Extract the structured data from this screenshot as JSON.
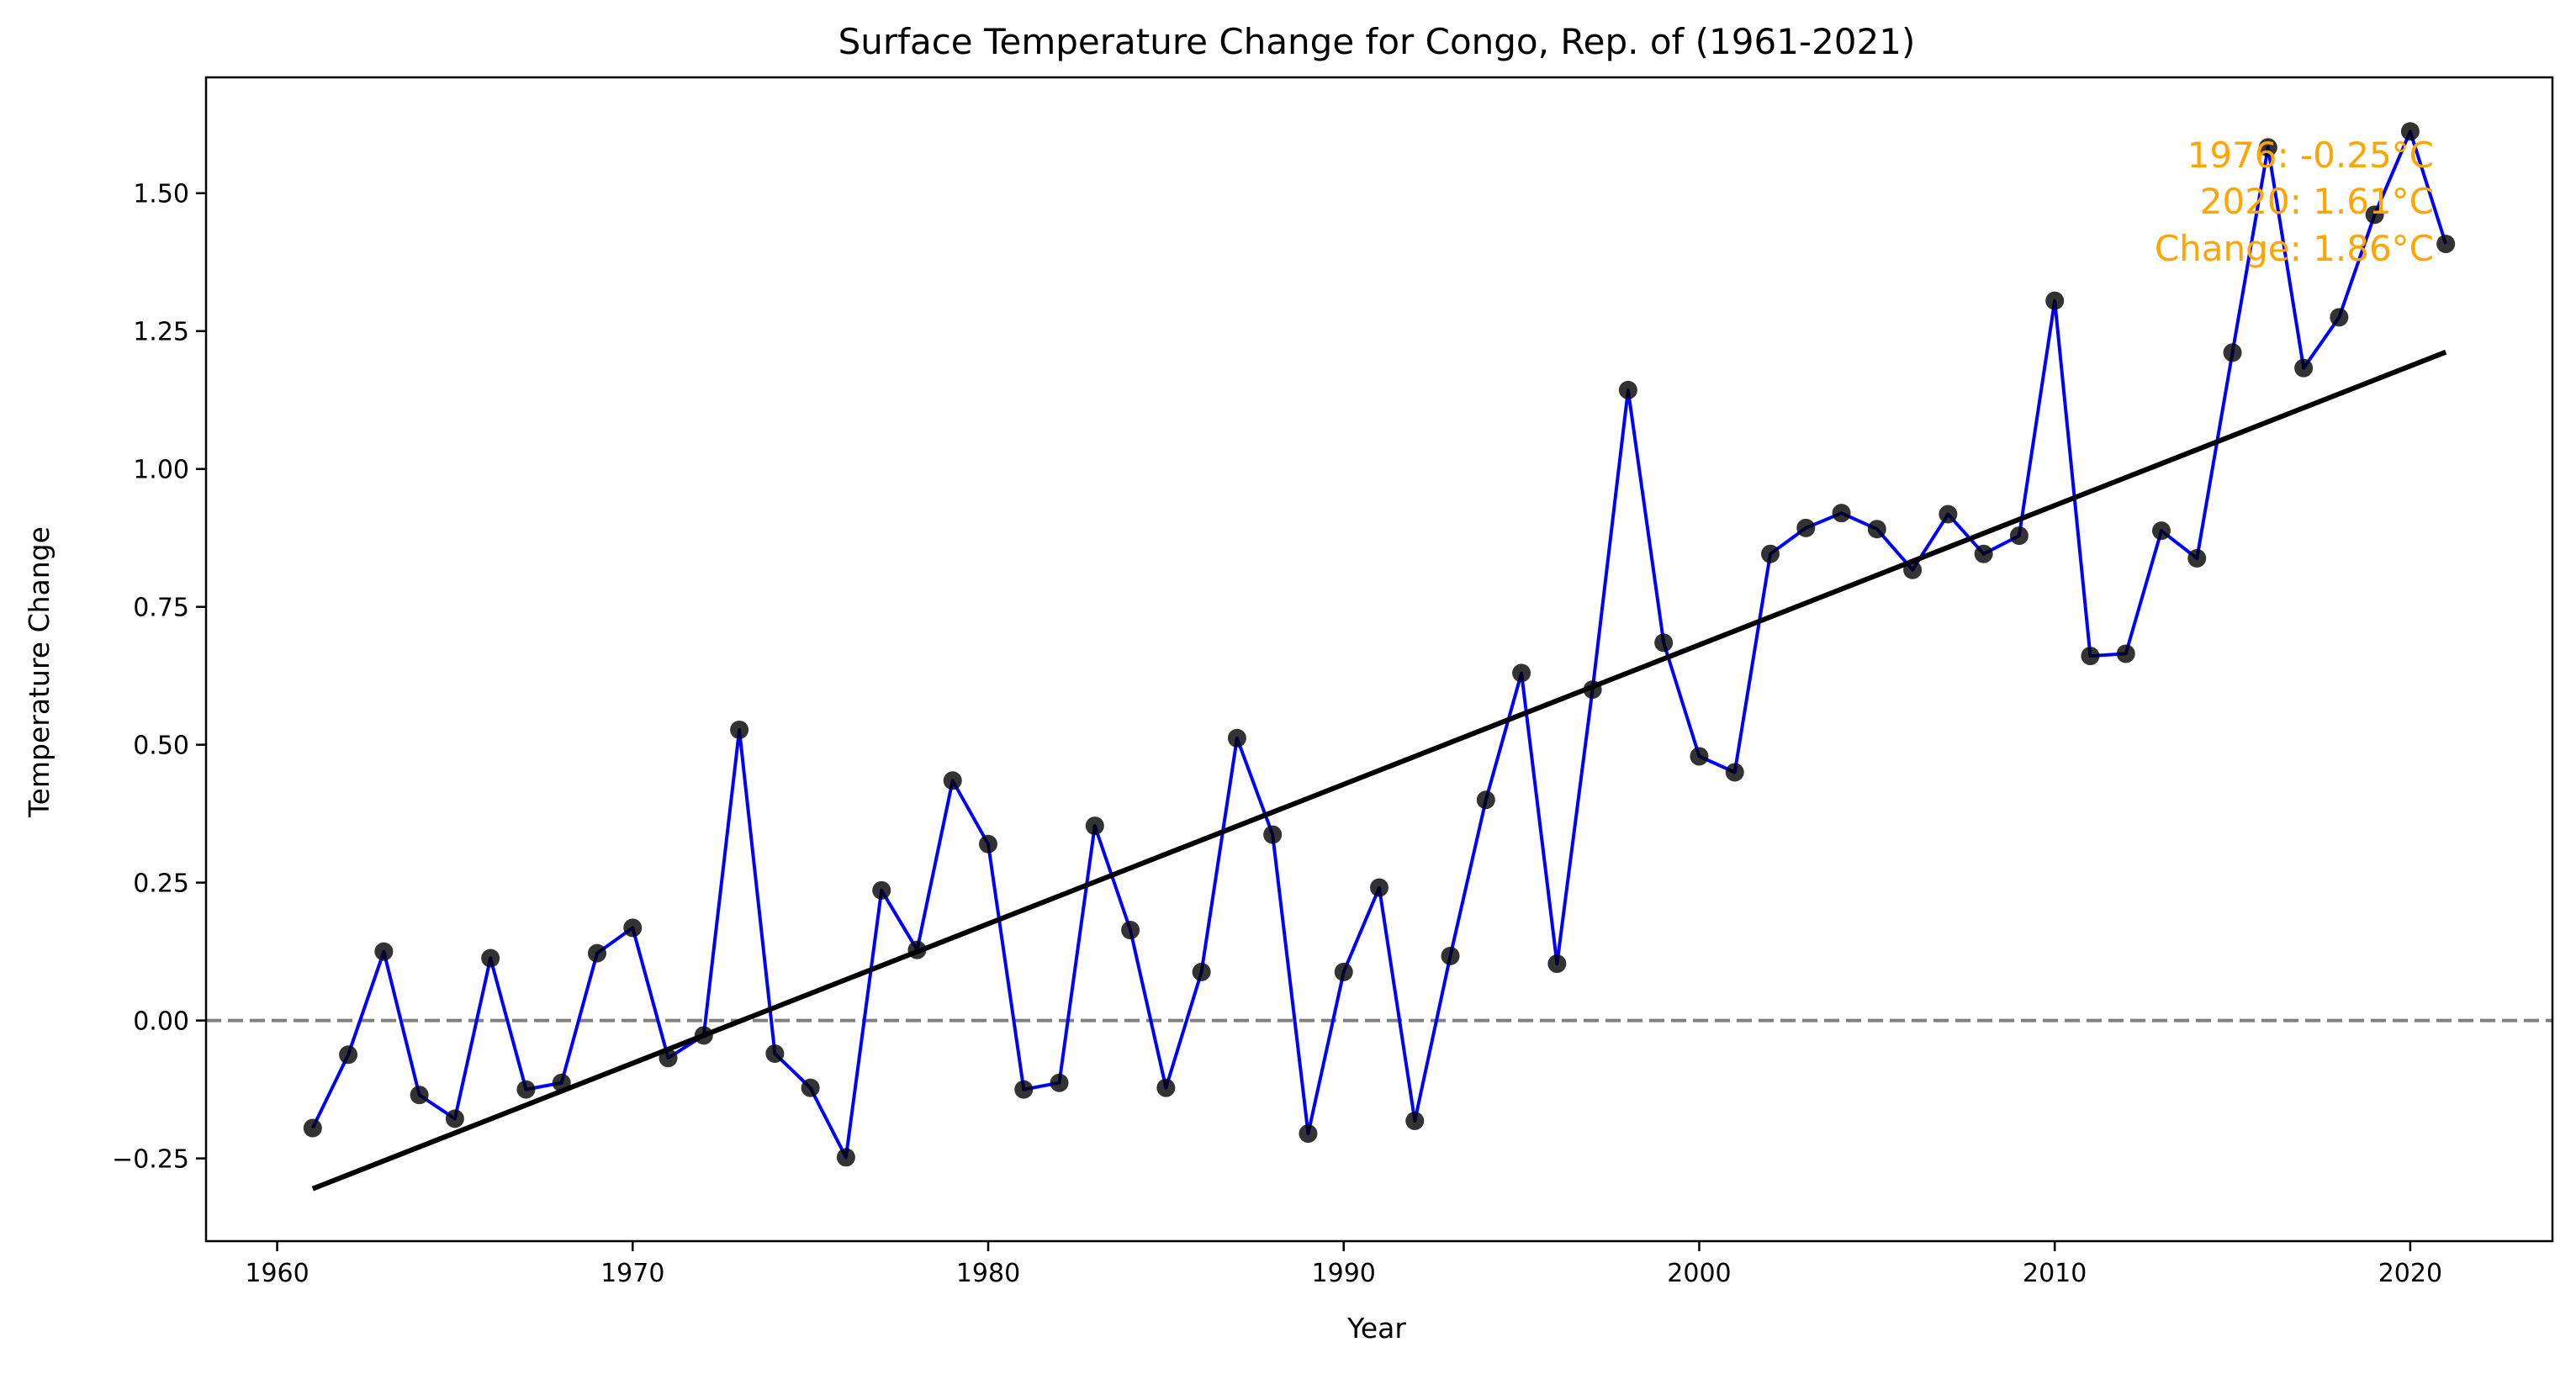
{
  "chart_data": {
    "type": "line",
    "title": "Surface Temperature Change for Congo, Rep. of (1961-2021)",
    "xlabel": "Year",
    "ylabel": "Temperature Change",
    "xlim": [
      1958.0,
      2024.0
    ],
    "ylim": [
      -0.4,
      1.71
    ],
    "xticks": [
      1960,
      1970,
      1980,
      1990,
      2000,
      2010,
      2020
    ],
    "xtick_labels": [
      "1960",
      "1970",
      "1980",
      "1990",
      "2000",
      "2010",
      "2020"
    ],
    "yticks": [
      -0.25,
      0,
      0.25,
      0.5,
      0.75,
      1.0,
      1.25,
      1.5
    ],
    "ytick_labels": [
      "−0.25",
      "0.00",
      "0.25",
      "0.50",
      "0.75",
      "1.00",
      "1.25",
      "1.50"
    ],
    "grid": false,
    "zero_line": 0,
    "colors": {
      "series_line": "#0000FF",
      "markers": "#000000",
      "trend": "#000000",
      "zero_line": "#808080",
      "annotation": "#FFA500"
    },
    "series": [
      {
        "x": [
          1961,
          1962,
          1963,
          1964,
          1965,
          1966,
          1967,
          1968,
          1969,
          1970,
          1971,
          1972,
          1973,
          1974,
          1975,
          1976,
          1977,
          1978,
          1979,
          1980,
          1981,
          1982,
          1983,
          1984,
          1985,
          1986,
          1987,
          1988,
          1989,
          1990,
          1991,
          1992,
          1993,
          1994,
          1995,
          1996,
          1997,
          1998,
          1999,
          2000,
          2001,
          2002,
          2003,
          2004,
          2005,
          2006,
          2007,
          2008,
          2009,
          2010,
          2011,
          2012,
          2013,
          2014,
          2015,
          2016,
          2017,
          2018,
          2019,
          2020,
          2021
        ],
        "y": [
          -0.195,
          -0.062,
          0.125,
          -0.135,
          -0.178,
          0.113,
          -0.125,
          -0.113,
          0.122,
          0.168,
          -0.068,
          -0.027,
          0.527,
          -0.06,
          -0.122,
          -0.248,
          0.236,
          0.128,
          0.435,
          0.32,
          -0.125,
          -0.113,
          0.353,
          0.164,
          -0.122,
          0.088,
          0.512,
          0.337,
          -0.205,
          0.088,
          0.241,
          -0.182,
          0.117,
          0.4,
          0.63,
          0.103,
          0.6,
          1.143,
          0.685,
          0.479,
          0.45,
          0.846,
          0.893,
          0.92,
          0.891,
          0.817,
          0.918,
          0.846,
          0.879,
          1.305,
          0.661,
          0.665,
          0.888,
          0.838,
          1.211,
          1.583,
          1.183,
          1.275,
          1.461,
          1.612,
          1.408
        ]
      }
    ],
    "trend_line": {
      "x": [
        1961,
        2021
      ],
      "y": [
        -0.305,
        1.212
      ]
    },
    "annotations": [
      "1976: -0.25°C",
      "2020: 1.61°C",
      "Change: 1.86°C"
    ]
  }
}
